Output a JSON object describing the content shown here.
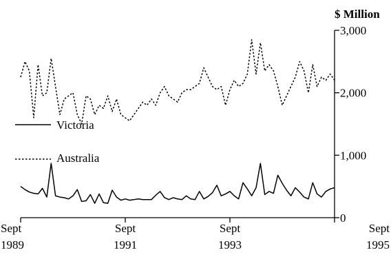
{
  "chart_data": {
    "type": "line",
    "title": "",
    "xlabel": "",
    "ylabel": "$ Million",
    "ylim": [
      0,
      3000
    ],
    "yticks": [
      {
        "value": 0,
        "label": "0"
      },
      {
        "value": 1000,
        "label": "1,000"
      },
      {
        "value": 2000,
        "label": "2,000"
      },
      {
        "value": 3000,
        "label": "3,000"
      }
    ],
    "xlim": [
      1989.667,
      1995.667
    ],
    "xticks": [
      {
        "value": 1989.667,
        "line1": "Sept",
        "line2": "1989"
      },
      {
        "value": 1991.667,
        "line1": "Sept",
        "line2": "1991"
      },
      {
        "value": 1993.667,
        "line1": "Sept",
        "line2": "1993"
      },
      {
        "value": 1995.667,
        "line1": "Sept",
        "line2": "1995"
      }
    ],
    "grid": false,
    "legend_position": "left",
    "series": [
      {
        "name": "Victoria",
        "style": "solid",
        "color": "#000000",
        "x": [
          1989.667,
          1989.75,
          1989.833,
          1989.917,
          1990.0,
          1990.083,
          1990.167,
          1990.25,
          1990.333,
          1990.417,
          1990.5,
          1990.583,
          1990.667,
          1990.75,
          1990.833,
          1990.917,
          1991.0,
          1991.083,
          1991.167,
          1991.25,
          1991.333,
          1991.417,
          1991.5,
          1991.583,
          1991.667,
          1991.75,
          1991.833,
          1991.917,
          1992.0,
          1992.083,
          1992.167,
          1992.25,
          1992.333,
          1992.417,
          1992.5,
          1992.583,
          1992.667,
          1992.75,
          1992.833,
          1992.917,
          1993.0,
          1993.083,
          1993.167,
          1993.25,
          1993.333,
          1993.417,
          1993.5,
          1993.583,
          1993.667,
          1993.75,
          1993.833,
          1993.917,
          1994.0,
          1994.083,
          1994.167,
          1994.25,
          1994.333,
          1994.417,
          1994.5,
          1994.583,
          1994.667,
          1994.75,
          1994.833,
          1994.917,
          1995.0,
          1995.083,
          1995.167,
          1995.25,
          1995.333,
          1995.417,
          1995.5,
          1995.583,
          1995.667
        ],
        "values": [
          500,
          450,
          410,
          390,
          380,
          470,
          330,
          870,
          350,
          330,
          320,
          300,
          350,
          450,
          260,
          270,
          370,
          230,
          380,
          240,
          230,
          440,
          330,
          280,
          300,
          280,
          290,
          300,
          290,
          290,
          290,
          360,
          420,
          320,
          290,
          320,
          300,
          290,
          350,
          300,
          290,
          420,
          300,
          340,
          400,
          520,
          350,
          380,
          420,
          350,
          300,
          560,
          460,
          350,
          480,
          870,
          370,
          420,
          390,
          680,
          550,
          440,
          350,
          480,
          410,
          330,
          300,
          560,
          380,
          330,
          420,
          460,
          480
        ]
      },
      {
        "name": "Australia",
        "style": "dotted",
        "color": "#000000",
        "x": [
          1989.667,
          1989.75,
          1989.833,
          1989.917,
          1990.0,
          1990.083,
          1990.167,
          1990.25,
          1990.333,
          1990.417,
          1990.5,
          1990.583,
          1990.667,
          1990.75,
          1990.833,
          1990.917,
          1991.0,
          1991.083,
          1991.167,
          1991.25,
          1991.333,
          1991.417,
          1991.5,
          1991.583,
          1991.667,
          1991.75,
          1991.833,
          1991.917,
          1992.0,
          1992.083,
          1992.167,
          1992.25,
          1992.333,
          1992.417,
          1992.5,
          1992.583,
          1992.667,
          1992.75,
          1992.833,
          1992.917,
          1993.0,
          1993.083,
          1993.167,
          1993.25,
          1993.333,
          1993.417,
          1993.5,
          1993.583,
          1993.667,
          1993.75,
          1993.833,
          1993.917,
          1994.0,
          1994.083,
          1994.167,
          1994.25,
          1994.333,
          1994.417,
          1994.5,
          1994.583,
          1994.667,
          1994.75,
          1994.833,
          1994.917,
          1995.0,
          1995.083,
          1995.167,
          1995.25,
          1995.333,
          1995.417,
          1995.5,
          1995.583,
          1995.667
        ],
        "values": [
          2250,
          2500,
          2350,
          1600,
          2450,
          1950,
          2000,
          2550,
          2100,
          1650,
          1900,
          1950,
          2000,
          1650,
          1500,
          1950,
          1900,
          1650,
          1800,
          1750,
          1950,
          1700,
          1900,
          1650,
          1600,
          1550,
          1650,
          1750,
          1850,
          1800,
          1900,
          1800,
          2000,
          2100,
          1950,
          1900,
          1850,
          2000,
          2050,
          2050,
          2100,
          2150,
          2400,
          2250,
          2100,
          2050,
          2100,
          1800,
          2050,
          2200,
          2100,
          2150,
          2300,
          2850,
          2300,
          2800,
          2350,
          2450,
          2350,
          2100,
          1800,
          1950,
          2100,
          2250,
          2500,
          2350,
          2000,
          2450,
          2100,
          2250,
          2200,
          2300,
          2200
        ]
      }
    ]
  }
}
